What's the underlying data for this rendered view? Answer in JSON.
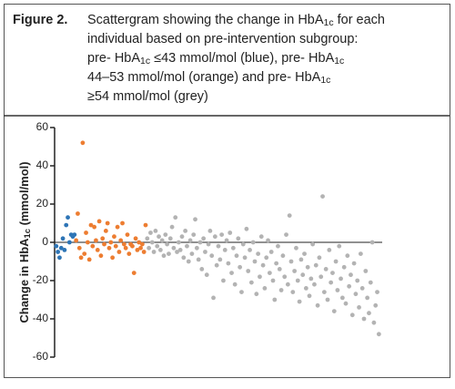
{
  "figure_label": "Figure 2.",
  "caption_lines": [
    "Scattergram showing the change in HbA1c for each",
    "individual based on pre-intervention subgroup:",
    "pre- HbA1c ≤43 mmol/mol (blue), pre- HbA1c",
    "44–53 mmol/mol (orange) and pre- HbA1c",
    " ≥54 mmol/mol (grey)"
  ],
  "chart_data": {
    "type": "scatter",
    "ylabel": "Change in HbA1c (mmol/mol)",
    "xlim": [
      0,
      198
    ],
    "ylim": [
      -60,
      60
    ],
    "yticks": [
      -60,
      -40,
      -20,
      0,
      20,
      40,
      60
    ],
    "series": [
      {
        "color": "#2e75b6",
        "x": [
          1,
          2,
          3,
          4,
          5,
          6,
          7,
          8,
          9,
          10,
          11,
          12
        ],
        "values": [
          -2,
          -5,
          -8,
          -3,
          2,
          -4,
          9,
          13,
          0,
          4,
          3,
          4
        ]
      },
      {
        "color": "#ed7d31",
        "x": [
          13,
          14,
          15,
          16,
          17,
          18,
          19,
          20,
          21,
          22,
          23,
          24,
          25,
          26,
          27,
          28,
          29,
          30,
          31,
          32,
          33,
          34,
          35,
          36,
          37,
          38,
          39,
          40,
          41,
          42,
          43,
          44,
          45,
          46,
          47,
          48,
          49,
          50,
          51,
          52,
          53,
          54,
          55
        ],
        "values": [
          1,
          15,
          -3,
          -8,
          52,
          -6,
          5,
          0,
          -9,
          9,
          -2,
          8,
          1,
          -4,
          11,
          -7,
          2,
          -1,
          6,
          10,
          -3,
          0,
          -8,
          3,
          -2,
          8,
          -5,
          1,
          10,
          -1,
          -3,
          4,
          -6,
          -1,
          -2,
          -16,
          2,
          -4,
          0,
          -3,
          -1,
          -5,
          9
        ]
      },
      {
        "color": "#b3b3b3",
        "x": [
          56,
          57,
          58,
          59,
          60,
          61,
          62,
          63,
          64,
          65,
          66,
          67,
          68,
          69,
          70,
          71,
          72,
          73,
          74,
          75,
          76,
          77,
          78,
          79,
          80,
          81,
          82,
          83,
          84,
          85,
          86,
          87,
          88,
          89,
          90,
          91,
          92,
          93,
          94,
          95,
          96,
          97,
          98,
          99,
          100,
          101,
          102,
          103,
          104,
          105,
          106,
          107,
          108,
          109,
          110,
          111,
          112,
          113,
          114,
          115,
          116,
          117,
          118,
          119,
          120,
          121,
          122,
          123,
          124,
          125,
          126,
          127,
          128,
          129,
          130,
          131,
          132,
          133,
          134,
          135,
          136,
          137,
          138,
          139,
          140,
          141,
          142,
          143,
          144,
          145,
          146,
          147,
          148,
          149,
          150,
          151,
          152,
          153,
          154,
          155,
          156,
          157,
          158,
          159,
          160,
          161,
          162,
          163,
          164,
          165,
          166,
          167,
          168,
          169,
          170,
          171,
          172,
          173,
          174,
          175,
          176,
          177,
          178,
          179,
          180,
          181,
          182,
          183,
          184,
          185,
          186,
          187,
          188,
          189,
          190,
          191,
          192,
          193,
          194,
          195,
          196
        ],
        "values": [
          2,
          -3,
          5,
          0,
          -5,
          6,
          -2,
          3,
          -4,
          1,
          -7,
          4,
          -1,
          -6,
          2,
          8,
          -3,
          13,
          -5,
          0,
          -4,
          3,
          -8,
          6,
          -2,
          -10,
          1,
          -6,
          4,
          12,
          -3,
          -9,
          0,
          -14,
          2,
          -5,
          -17,
          -1,
          6,
          -7,
          -29,
          3,
          -12,
          -2,
          -9,
          4,
          -20,
          -4,
          1,
          -11,
          5,
          -16,
          -3,
          -22,
          -7,
          2,
          -13,
          -26,
          -1,
          -8,
          7,
          -15,
          -4,
          -21,
          0,
          -10,
          -27,
          -6,
          -18,
          3,
          -12,
          -24,
          -8,
          1,
          -16,
          -5,
          -20,
          -30,
          -11,
          -2,
          -14,
          -25,
          -7,
          -18,
          4,
          -22,
          14,
          -10,
          -26,
          -15,
          -3,
          -20,
          -31,
          -9,
          -17,
          -6,
          -24,
          -13,
          -28,
          -19,
          -1,
          -22,
          -12,
          -33,
          -8,
          -18,
          24,
          -26,
          -14,
          -30,
          -4,
          -21,
          -16,
          -36,
          -10,
          -25,
          -2,
          -19,
          -29,
          -13,
          -32,
          -7,
          -23,
          -17,
          -38,
          -11,
          -27,
          -20,
          -34,
          -6,
          -24,
          -40,
          -15,
          -29,
          -37,
          -21,
          0,
          -42,
          -33,
          -26,
          -48
        ]
      }
    ]
  }
}
